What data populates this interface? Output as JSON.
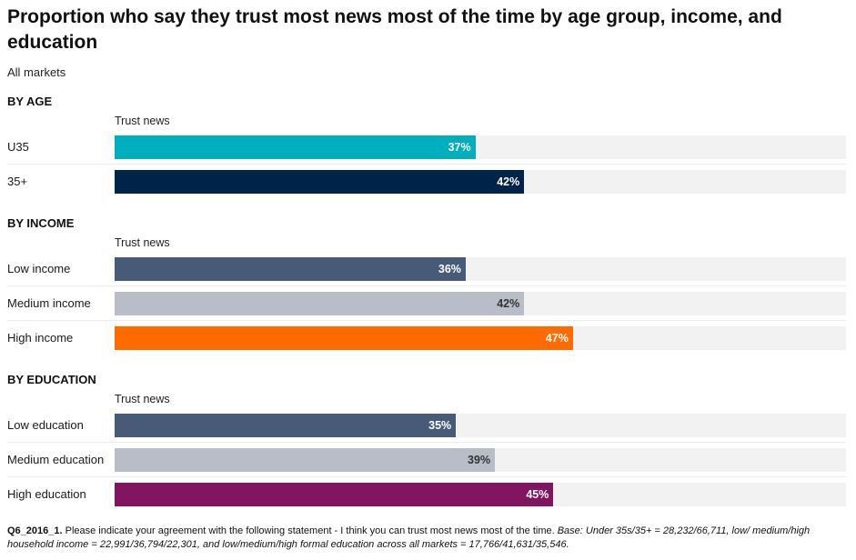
{
  "title": "Proportion who say they trust most news most of the time by age group, income, and education",
  "subtitle": "All markets",
  "chart_data": [
    {
      "type": "bar",
      "orientation": "horizontal",
      "heading": "BY AGE",
      "series_name": "Trust news",
      "categories": [
        "U35",
        "35+"
      ],
      "values": [
        37,
        42
      ],
      "value_labels": [
        "37%",
        "42%"
      ],
      "colors": [
        "#00afbe",
        "#00234a"
      ],
      "label_colors": [
        "#ffffff",
        "#ffffff"
      ],
      "xlim": [
        0,
        75
      ]
    },
    {
      "type": "bar",
      "orientation": "horizontal",
      "heading": "BY INCOME",
      "series_name": "Trust news",
      "categories": [
        "Low income",
        "Medium income",
        "High income"
      ],
      "values": [
        36,
        42,
        47
      ],
      "value_labels": [
        "36%",
        "42%",
        "47%"
      ],
      "colors": [
        "#475b79",
        "#b8bdc8",
        "#ff6b00"
      ],
      "label_colors": [
        "#ffffff",
        "#333333",
        "#ffffff"
      ],
      "xlim": [
        0,
        75
      ]
    },
    {
      "type": "bar",
      "orientation": "horizontal",
      "heading": "BY EDUCATION",
      "series_name": "Trust news",
      "categories": [
        "Low education",
        "Medium education",
        "High education"
      ],
      "values": [
        35,
        39,
        45
      ],
      "value_labels": [
        "35%",
        "39%",
        "45%"
      ],
      "colors": [
        "#475b79",
        "#b8bdc8",
        "#82155f"
      ],
      "label_colors": [
        "#ffffff",
        "#333333",
        "#ffffff"
      ],
      "xlim": [
        0,
        75
      ]
    }
  ],
  "footnote": {
    "question": "Q6_2016_1.",
    "text": " Please indicate your agreement with the following statement - I think you can trust most news most of the time. ",
    "base": "Base: Under 35s/35+ = 28,232/66,711, low/ medium/high household income = 22,991/36,794/22,301, and low/medium/high formal education across all markets = 17,766/41,631/35,546."
  }
}
